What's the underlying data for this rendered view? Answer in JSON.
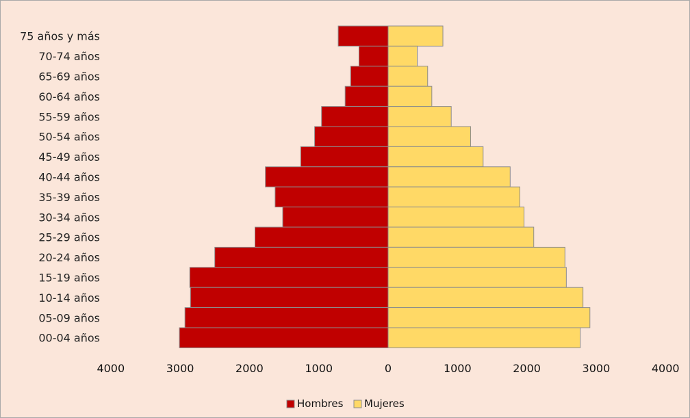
{
  "chart_data": {
    "type": "bar",
    "orientation": "horizontal",
    "layout": "population-pyramid",
    "categories": [
      "75 años y más",
      "70-74 años",
      "65-69 años",
      "60-64 años",
      "55-59 años",
      "50-54 años",
      "45-49 años",
      "40-44 años",
      "35-39 años",
      "30-34 años",
      "25-29 años",
      "20-24 años",
      "15-19 años",
      "10-14 años",
      "05-09 años",
      "00-04 años"
    ],
    "series": [
      {
        "name": "Hombres",
        "color": "#c00000",
        "side": "left",
        "values": [
          720,
          420,
          540,
          620,
          960,
          1060,
          1260,
          1770,
          1630,
          1520,
          1920,
          2500,
          2860,
          2850,
          2930,
          3010
        ]
      },
      {
        "name": "Mujeres",
        "color": "#ffd966",
        "side": "right",
        "values": [
          790,
          420,
          570,
          630,
          910,
          1190,
          1370,
          1760,
          1900,
          1960,
          2100,
          2550,
          2570,
          2810,
          2910,
          2770
        ]
      }
    ],
    "x_ticks": [
      "4000",
      "3000",
      "2000",
      "1000",
      "0",
      "1000",
      "2000",
      "3000",
      "4000"
    ],
    "xlim": [
      -4000,
      4000
    ],
    "grid": false,
    "legend_position": "bottom-center"
  }
}
